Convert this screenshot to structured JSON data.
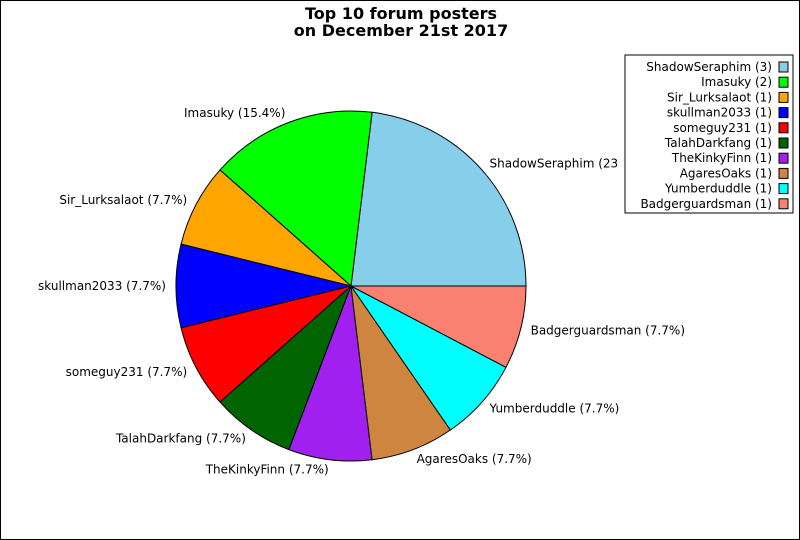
{
  "chart_data": {
    "type": "pie",
    "title": [
      "Top 10 forum posters",
      "on December 21st 2017"
    ],
    "slices": [
      {
        "name": "ShadowSeraphim",
        "count": 3,
        "percent_label": "ShadowSeraphim (23",
        "legend_label": "ShadowSeraphim (3)",
        "color": "#87ceeb"
      },
      {
        "name": "Imasuky",
        "count": 2,
        "percent_label": "Imasuky (15.4%)",
        "legend_label": "Imasuky (2)",
        "color": "#00ff00"
      },
      {
        "name": "Sir_Lurksalaot",
        "count": 1,
        "percent_label": "Sir_Lurksalaot (7.7%)",
        "legend_label": "Sir_Lurksalaot (1)",
        "color": "#ffa500"
      },
      {
        "name": "skullman2033",
        "count": 1,
        "percent_label": "skullman2033 (7.7%)",
        "legend_label": "skullman2033 (1)",
        "color": "#0000ff"
      },
      {
        "name": "someguy231",
        "count": 1,
        "percent_label": "someguy231 (7.7%)",
        "legend_label": "someguy231 (1)",
        "color": "#ff0000"
      },
      {
        "name": "TalahDarkfang",
        "count": 1,
        "percent_label": "TalahDarkfang (7.7%)",
        "legend_label": "TalahDarkfang (1)",
        "color": "#006400"
      },
      {
        "name": "TheKinkyFinn",
        "count": 1,
        "percent_label": "TheKinkyFinn (7.7%)",
        "legend_label": "TheKinkyFinn (1)",
        "color": "#a020f0"
      },
      {
        "name": "AgaresOaks",
        "count": 1,
        "percent_label": "AgaresOaks (7.7%)",
        "legend_label": "AgaresOaks (1)",
        "color": "#cd853f"
      },
      {
        "name": "Yumberduddle",
        "count": 1,
        "percent_label": "Yumberduddle (7.7%)",
        "legend_label": "Yumberduddle (1)",
        "color": "#00ffff"
      },
      {
        "name": "Badgerguardsman",
        "count": 1,
        "percent_label": "Badgerguardsman (7.7%)",
        "legend_label": "Badgerguardsman (1)",
        "color": "#fa8072"
      }
    ],
    "legend_position": "top-right",
    "start_angle": "3 o'clock, counterclockwise"
  }
}
